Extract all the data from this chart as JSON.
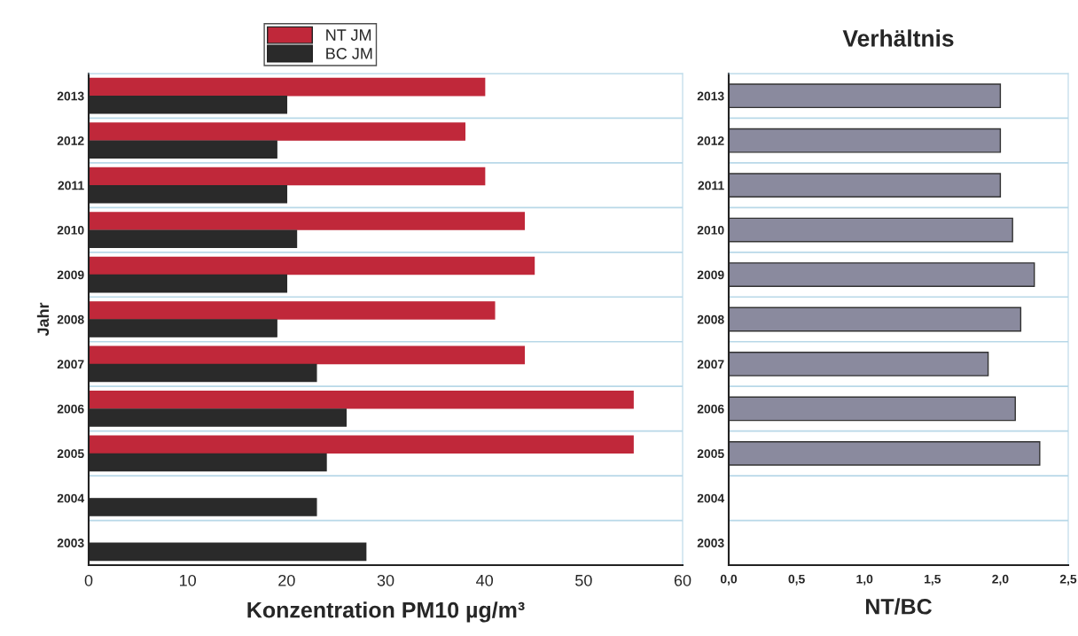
{
  "chart_data": [
    {
      "type": "bar",
      "orientation": "horizontal",
      "xlabel": "Konzentration PM10 µg/m³",
      "ylabel": "Jahr",
      "categories": [
        "2013",
        "2012",
        "2011",
        "2010",
        "2009",
        "2008",
        "2007",
        "2006",
        "2005",
        "2004",
        "2003"
      ],
      "series": [
        {
          "name": "NT JM",
          "color": "#c0283a",
          "values": [
            40,
            38,
            40,
            44,
            45,
            41,
            44,
            55,
            55,
            null,
            null
          ]
        },
        {
          "name": "BC JM",
          "color": "#2a2a2a",
          "values": [
            20,
            19,
            20,
            21,
            20,
            19,
            23,
            26,
            24,
            23,
            28
          ]
        }
      ],
      "xlim": [
        0,
        60
      ],
      "xticks": [
        0,
        10,
        20,
        30,
        40,
        50,
        60
      ],
      "grid": "y",
      "legend": "top"
    },
    {
      "type": "bar",
      "orientation": "horizontal",
      "title": "Verhältnis",
      "xlabel": "NT/BC",
      "categories": [
        "2013",
        "2012",
        "2011",
        "2010",
        "2009",
        "2008",
        "2007",
        "2006",
        "2005",
        "2004",
        "2003"
      ],
      "series": [
        {
          "color": "#8a8a9e",
          "values": [
            2.0,
            2.0,
            2.0,
            2.09,
            2.25,
            2.15,
            1.91,
            2.11,
            2.29,
            null,
            null
          ]
        }
      ],
      "xlim": [
        0,
        2.5
      ],
      "xticks": [
        {
          "value": 0,
          "label": "0,0"
        },
        {
          "value": 0.5,
          "label": "0,5"
        },
        {
          "value": 1.0,
          "label": "1,0"
        },
        {
          "value": 1.5,
          "label": "1,5"
        },
        {
          "value": 2.0,
          "label": "2,0"
        },
        {
          "value": 2.5,
          "label": "2,5"
        }
      ],
      "grid": "y"
    }
  ]
}
